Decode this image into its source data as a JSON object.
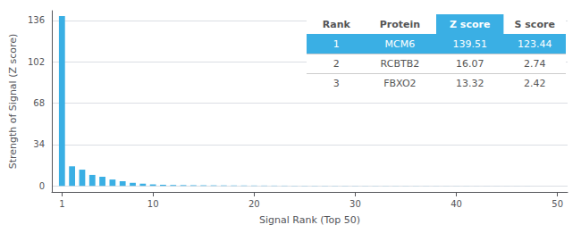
{
  "chart_data": {
    "type": "bar",
    "xlabel": "Signal Rank (Top 50)",
    "ylabel": "Strength of Signal (Z score)",
    "x": [
      1,
      2,
      3,
      4,
      5,
      6,
      7,
      8,
      9,
      10,
      11,
      12,
      13,
      14,
      15,
      16,
      17,
      18,
      19,
      20,
      21,
      22,
      23,
      24,
      25,
      26,
      27,
      28,
      29,
      30,
      31,
      32,
      33,
      34,
      35,
      36,
      37,
      38,
      39,
      40,
      41,
      42,
      43,
      44,
      45,
      46,
      47,
      48,
      49,
      50
    ],
    "values": [
      139.51,
      16.07,
      13.32,
      9.0,
      7.5,
      5.2,
      3.8,
      2.5,
      1.8,
      1.2,
      0.9,
      0.7,
      0.6,
      0.5,
      0.45,
      0.4,
      0.35,
      0.3,
      0.28,
      0.25,
      0.22,
      0.2,
      0.18,
      0.16,
      0.15,
      0.14,
      0.13,
      0.12,
      0.11,
      0.1,
      0.09,
      0.09,
      0.08,
      0.08,
      0.07,
      0.07,
      0.06,
      0.06,
      0.05,
      0.05,
      0.05,
      0.04,
      0.04,
      0.04,
      0.03,
      0.03,
      0.03,
      0.02,
      0.02,
      0.02
    ],
    "color": "#3aafe4",
    "xlim": [
      0,
      51
    ],
    "xticks": [
      1,
      10,
      20,
      30,
      40,
      50
    ],
    "ylim": [
      -5,
      144
    ],
    "yticks": [
      0,
      34,
      68,
      102,
      136
    ],
    "grid": true,
    "table": {
      "columns": [
        "Rank",
        "Protein",
        "Z score",
        "S score"
      ],
      "rows": [
        [
          "1",
          "MCM6",
          "139.51",
          "123.44"
        ],
        [
          "2",
          "RCBTB2",
          "16.07",
          "2.74"
        ],
        [
          "3",
          "FBXO2",
          "13.32",
          "2.42"
        ]
      ],
      "color": "#3aafe4"
    }
  }
}
